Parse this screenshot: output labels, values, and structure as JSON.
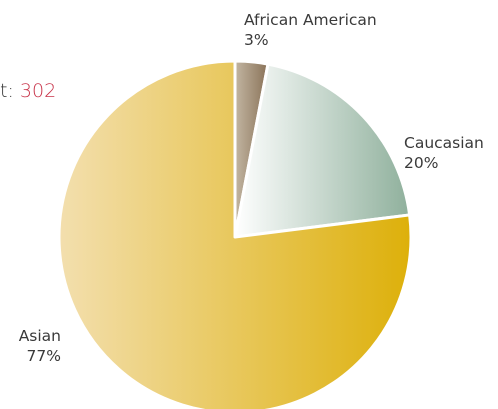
{
  "count": {
    "label_fragment": "t:",
    "value": "302"
  },
  "chart_data": {
    "type": "pie",
    "title": "",
    "start_angle_deg": 0,
    "direction": "clockwise",
    "slices": [
      {
        "label": "African American",
        "percent_label": "3%",
        "value": 3,
        "gradient": [
          "#c2b6a2",
          "#8a7258"
        ]
      },
      {
        "label": "Caucasian",
        "percent_label": "20%",
        "value": 20,
        "gradient": [
          "#ffffff",
          "#8fb09c"
        ]
      },
      {
        "label": "Asian",
        "percent_label": "77%",
        "value": 77,
        "gradient": [
          "#f3dfae",
          "#ddb00a"
        ]
      }
    ]
  }
}
